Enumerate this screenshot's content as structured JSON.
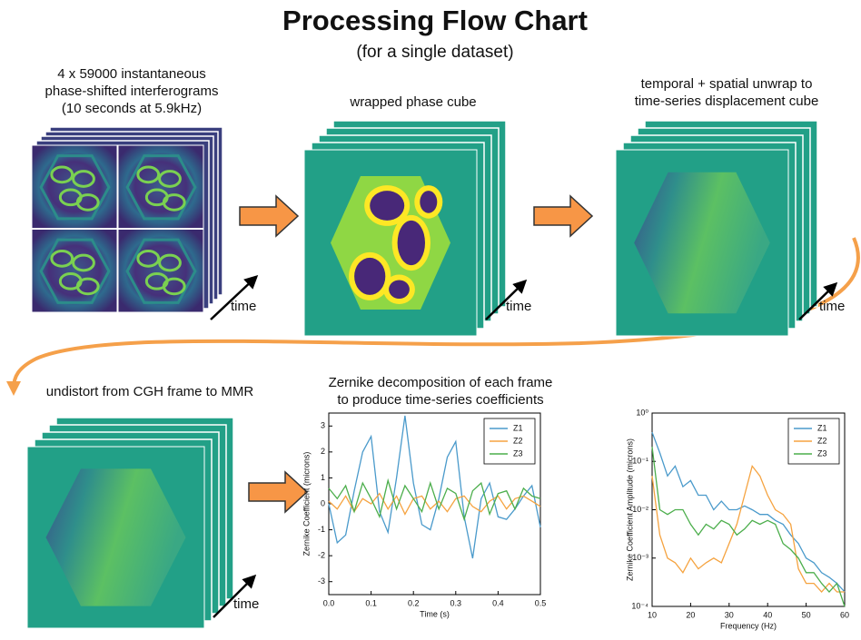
{
  "header": {
    "title": "Processing Flow Chart",
    "subtitle": "(for a single dataset)"
  },
  "steps": [
    {
      "label_lines": [
        "4 x 59000 instantaneous",
        "phase-shifted interferograms",
        "(10 seconds at 5.9kHz)"
      ],
      "axis_label": "time"
    },
    {
      "label_lines": [
        "wrapped phase cube"
      ],
      "axis_label": "time"
    },
    {
      "label_lines": [
        "temporal + spatial unwrap to",
        "time-series displacement cube"
      ],
      "axis_label": "time"
    },
    {
      "label_lines": [
        "undistort from CGH frame to MMR"
      ],
      "axis_label": "time"
    },
    {
      "label_lines": [
        "Zernike decomposition of each frame",
        "to produce time-series coefficients"
      ]
    }
  ],
  "charts": [
    {
      "type": "line",
      "xlabel": "Time (s)",
      "ylabel": "Zernike Coefficient (microns)",
      "log_y": false,
      "legend": "upper right",
      "xlim": [
        0,
        0.5
      ],
      "xticks": [
        {
          "value": 0,
          "label": "0.0"
        },
        0.1,
        0.2,
        0.3,
        0.4,
        0.5
      ],
      "ylim": [
        -3.5,
        3.5
      ],
      "yticks": [
        -3,
        -2,
        -1,
        0,
        1,
        2,
        3
      ],
      "x": [
        0,
        0.02,
        0.04,
        0.06,
        0.08,
        0.1,
        0.12,
        0.14,
        0.16,
        0.18,
        0.2,
        0.22,
        0.24,
        0.26,
        0.28,
        0.3,
        0.32,
        0.34,
        0.36,
        0.38,
        0.4,
        0.42,
        0.44,
        0.46,
        0.48,
        0.5
      ],
      "series": [
        {
          "name": "Z1",
          "color": "#4a9acb",
          "values": [
            0,
            -1.5,
            -1.2,
            0.5,
            2.0,
            2.6,
            -0.3,
            -1.1,
            1.0,
            3.4,
            0.8,
            -0.8,
            -1.0,
            0.2,
            1.8,
            2.4,
            -0.5,
            -2.1,
            0.2,
            0.8,
            -0.5,
            -0.6,
            -0.2,
            0.3,
            0.7,
            -0.9
          ]
        },
        {
          "name": "Z2",
          "color": "#f5a340",
          "values": [
            0.1,
            -0.2,
            0.3,
            -0.3,
            0.2,
            0,
            0.4,
            -0.2,
            0.3,
            -0.4,
            0.2,
            0.3,
            -0.2,
            0.1,
            -0.3,
            0.2,
            0.3,
            -0.1,
            -0.3,
            0.1,
            0.3,
            -0.2,
            0.2,
            0.3,
            0.1,
            -0.1
          ]
        },
        {
          "name": "Z3",
          "color": "#4cae4c",
          "values": [
            0.6,
            0.2,
            0.7,
            -0.3,
            0.8,
            0.2,
            -0.5,
            0.9,
            -0.2,
            0.7,
            0.2,
            -0.3,
            0.8,
            -0.2,
            0.6,
            0.4,
            -0.6,
            0.5,
            0.8,
            -0.4,
            0.4,
            0.5,
            -0.2,
            0.6,
            0.3,
            0.2
          ]
        }
      ]
    },
    {
      "type": "line",
      "xlabel": "Frequency (Hz)",
      "ylabel": "Zernike Coefficient Amplitude (microns)",
      "log_y": true,
      "legend": "upper right",
      "xlim": [
        10,
        60
      ],
      "xticks": [
        10,
        20,
        30,
        40,
        50,
        60
      ],
      "ylim": [
        0.0001,
        1
      ],
      "yticks": [
        {
          "value": 1,
          "label": "10⁰"
        },
        {
          "value": 0.1,
          "label": "10⁻¹"
        },
        {
          "value": 0.01,
          "label": "10⁻²"
        },
        {
          "value": 0.001,
          "label": "10⁻³"
        },
        {
          "value": 0.0001,
          "label": "10⁻⁴"
        }
      ],
      "x": [
        10,
        12,
        14,
        16,
        18,
        20,
        22,
        24,
        26,
        28,
        30,
        32,
        34,
        36,
        38,
        40,
        42,
        44,
        46,
        48,
        50,
        52,
        54,
        56,
        58,
        60
      ],
      "series": [
        {
          "name": "Z1",
          "color": "#4a9acb",
          "values": [
            0.4,
            0.15,
            0.05,
            0.08,
            0.03,
            0.04,
            0.02,
            0.02,
            0.01,
            0.015,
            0.01,
            0.01,
            0.012,
            0.01,
            0.008,
            0.008,
            0.006,
            0.005,
            0.003,
            0.002,
            0.001,
            0.0008,
            0.0005,
            0.0004,
            0.0003,
            0.0002
          ]
        },
        {
          "name": "Z2",
          "color": "#f5a340",
          "values": [
            0.05,
            0.003,
            0.001,
            0.0008,
            0.0005,
            0.001,
            0.0006,
            0.0008,
            0.001,
            0.0008,
            0.002,
            0.005,
            0.02,
            0.08,
            0.05,
            0.02,
            0.01,
            0.008,
            0.005,
            0.0006,
            0.0003,
            0.0003,
            0.0002,
            0.0003,
            0.0002,
            0.0002
          ]
        },
        {
          "name": "Z3",
          "color": "#4cae4c",
          "values": [
            0.2,
            0.01,
            0.008,
            0.01,
            0.01,
            0.005,
            0.003,
            0.005,
            0.004,
            0.006,
            0.005,
            0.003,
            0.004,
            0.006,
            0.005,
            0.006,
            0.005,
            0.002,
            0.0015,
            0.001,
            0.0005,
            0.0005,
            0.0003,
            0.0002,
            0.0003,
            0.0001
          ]
        }
      ]
    }
  ]
}
